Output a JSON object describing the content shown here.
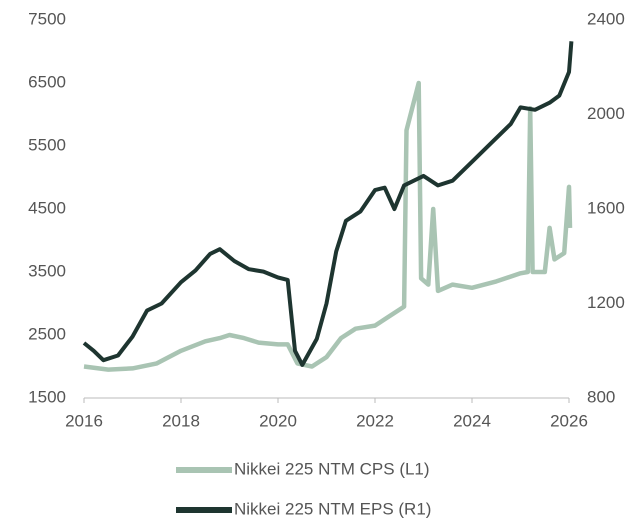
{
  "chart_data": {
    "type": "line",
    "xlim": [
      2016,
      2026
    ],
    "xticks": [
      2016,
      2018,
      2020,
      2022,
      2024,
      2026
    ],
    "ylim": [
      1500,
      7500
    ],
    "yticks": [
      1500,
      2500,
      3500,
      4500,
      5500,
      6500,
      7500
    ],
    "y2lim": [
      800,
      2400
    ],
    "y2ticks": [
      800,
      1200,
      1600,
      2000,
      2400
    ],
    "series": [
      {
        "name": "Nikkei 225 NTM CPS  (L1)",
        "color": "#a9c4b3",
        "axis": "y",
        "x": [
          2016.0,
          2016.5,
          2017.0,
          2017.5,
          2018.0,
          2018.5,
          2018.8,
          2019.0,
          2019.3,
          2019.6,
          2020.0,
          2020.2,
          2020.4,
          2020.7,
          2021.0,
          2021.3,
          2021.6,
          2022.0,
          2022.3,
          2022.6,
          2022.65,
          2022.9,
          2022.95,
          2023.1,
          2023.2,
          2023.3,
          2023.6,
          2024.0,
          2024.5,
          2025.0,
          2025.15,
          2025.2,
          2025.25,
          2025.5,
          2025.6,
          2025.7,
          2025.9,
          2026.0,
          2026.02
        ],
        "values": [
          2000,
          1950,
          1970,
          2050,
          2250,
          2400,
          2450,
          2500,
          2450,
          2380,
          2350,
          2350,
          2050,
          2000,
          2150,
          2450,
          2600,
          2650,
          2800,
          2950,
          5750,
          6500,
          3400,
          3300,
          4500,
          3200,
          3300,
          3250,
          3350,
          3480,
          3500,
          6100,
          3500,
          3500,
          4200,
          3700,
          3800,
          4850,
          4200
        ]
      },
      {
        "name": "Nikkei 225 NTM EPS  (R1)",
        "color": "#1e3530",
        "axis": "y2",
        "x": [
          2016.0,
          2016.2,
          2016.4,
          2016.7,
          2017.0,
          2017.3,
          2017.6,
          2018.0,
          2018.3,
          2018.6,
          2018.8,
          2019.1,
          2019.4,
          2019.7,
          2020.0,
          2020.2,
          2020.35,
          2020.5,
          2020.8,
          2021.0,
          2021.2,
          2021.4,
          2021.7,
          2022.0,
          2022.2,
          2022.4,
          2022.6,
          2022.8,
          2023.0,
          2023.3,
          2023.6,
          2024.0,
          2024.4,
          2024.8,
          2025.0,
          2025.3,
          2025.6,
          2025.8,
          2026.0,
          2026.05
        ],
        "values": [
          1033,
          1000,
          960,
          980,
          1060,
          1170,
          1200,
          1290,
          1340,
          1410,
          1430,
          1380,
          1345,
          1335,
          1310,
          1300,
          1000,
          940,
          1050,
          1200,
          1420,
          1550,
          1590,
          1680,
          1690,
          1600,
          1700,
          1720,
          1740,
          1700,
          1720,
          1800,
          1880,
          1960,
          2030,
          2020,
          2050,
          2080,
          2180,
          2310
        ]
      }
    ]
  }
}
